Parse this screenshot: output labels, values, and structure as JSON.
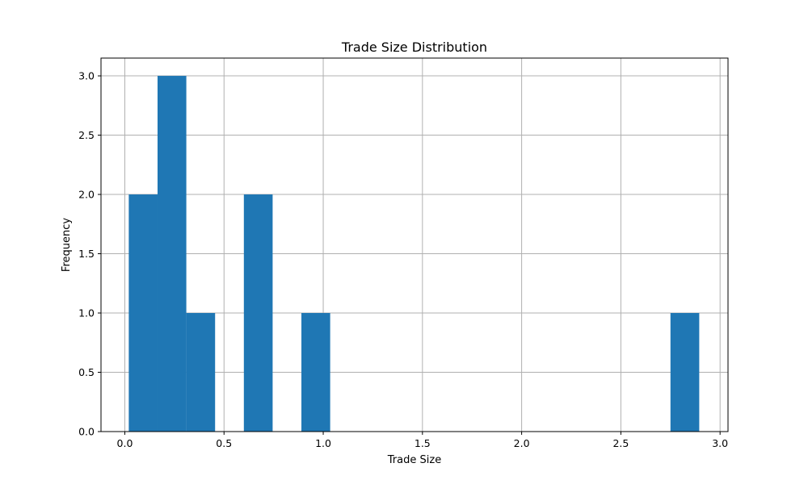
{
  "chart_data": {
    "type": "bar",
    "title": "Trade Size Distribution",
    "xlabel": "Trade Size",
    "ylabel": "Frequency",
    "xlim": [
      -0.12,
      3.04
    ],
    "ylim": [
      0,
      3.15
    ],
    "grid": true,
    "bar_color": "#1f77b4",
    "x_ticks": [
      {
        "value": 0.0,
        "label": "0.0"
      },
      {
        "value": 0.5,
        "label": "0.5"
      },
      {
        "value": 1.0,
        "label": "1.0"
      },
      {
        "value": 1.5,
        "label": "1.5"
      },
      {
        "value": 2.0,
        "label": "2.0"
      },
      {
        "value": 2.5,
        "label": "2.5"
      },
      {
        "value": 3.0,
        "label": "3.0"
      }
    ],
    "y_ticks": [
      {
        "value": 0.0,
        "label": "0.0"
      },
      {
        "value": 0.5,
        "label": "0.5"
      },
      {
        "value": 1.0,
        "label": "1.0"
      },
      {
        "value": 1.5,
        "label": "1.5"
      },
      {
        "value": 2.0,
        "label": "2.0"
      },
      {
        "value": 2.5,
        "label": "2.5"
      },
      {
        "value": 3.0,
        "label": "3.0"
      }
    ],
    "bins": [
      {
        "x0": 0.02,
        "x1": 0.165,
        "count": 2
      },
      {
        "x0": 0.165,
        "x1": 0.31,
        "count": 3
      },
      {
        "x0": 0.31,
        "x1": 0.455,
        "count": 1
      },
      {
        "x0": 0.455,
        "x1": 0.6,
        "count": 0
      },
      {
        "x0": 0.6,
        "x1": 0.745,
        "count": 2
      },
      {
        "x0": 0.745,
        "x1": 0.89,
        "count": 0
      },
      {
        "x0": 0.89,
        "x1": 1.035,
        "count": 1
      },
      {
        "x0": 2.75,
        "x1": 2.895,
        "count": 1
      }
    ]
  }
}
